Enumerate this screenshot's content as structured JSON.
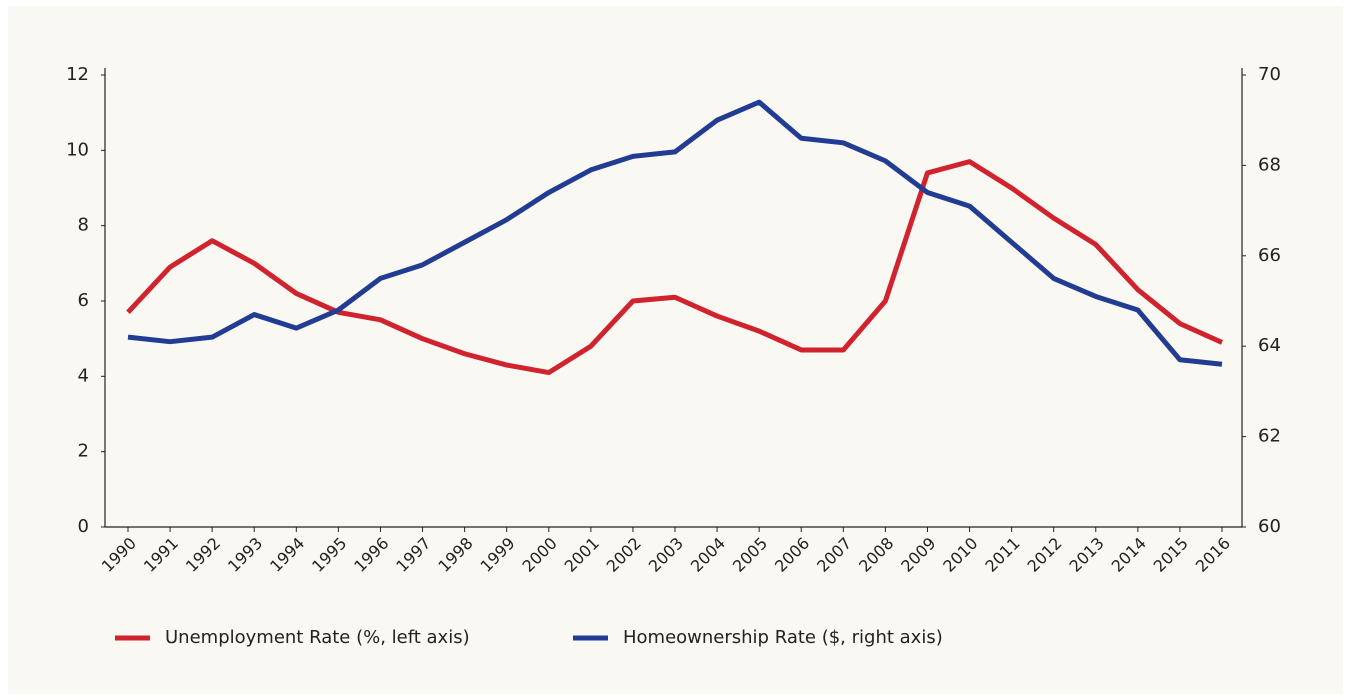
{
  "chart_data": {
    "type": "line",
    "categories": [
      "1990",
      "1991",
      "1992",
      "1993",
      "1994",
      "1995",
      "1996",
      "1997",
      "1998",
      "1999",
      "2000",
      "2001",
      "2002",
      "2003",
      "2004",
      "2005",
      "2006",
      "2007",
      "2008",
      "2009",
      "2010",
      "2011",
      "2012",
      "2013",
      "2014",
      "2015",
      "2016"
    ],
    "series": [
      {
        "name": "Unemployment Rate (%, left axis)",
        "color": "#d0232e",
        "values": [
          5.7,
          6.9,
          7.6,
          7.0,
          6.2,
          5.7,
          5.5,
          5.0,
          4.6,
          4.3,
          4.1,
          4.8,
          6.0,
          6.1,
          5.6,
          5.2,
          4.7,
          4.7,
          6.0,
          9.4,
          9.7,
          9.0,
          8.2,
          7.5,
          6.3,
          5.4,
          4.9
        ]
      },
      {
        "name": "Homeownership Rate ($, right axis)",
        "color": "#233c93",
        "axis": "y2",
        "values": [
          64.2,
          64.1,
          64.2,
          64.7,
          64.4,
          64.8,
          65.5,
          65.8,
          66.3,
          66.8,
          67.4,
          67.9,
          68.2,
          68.3,
          69.0,
          69.4,
          68.6,
          68.5,
          68.1,
          67.4,
          67.1,
          66.3,
          65.5,
          65.1,
          64.8,
          63.7,
          63.6
        ]
      }
    ],
    "ylim": [
      0,
      12
    ],
    "yticks": [
      0,
      2,
      4,
      6,
      8,
      10,
      12
    ],
    "y2lim": [
      60,
      70
    ],
    "y2ticks": [
      60,
      62,
      64,
      66,
      68,
      70
    ],
    "grid": false,
    "legend": "bottom"
  }
}
